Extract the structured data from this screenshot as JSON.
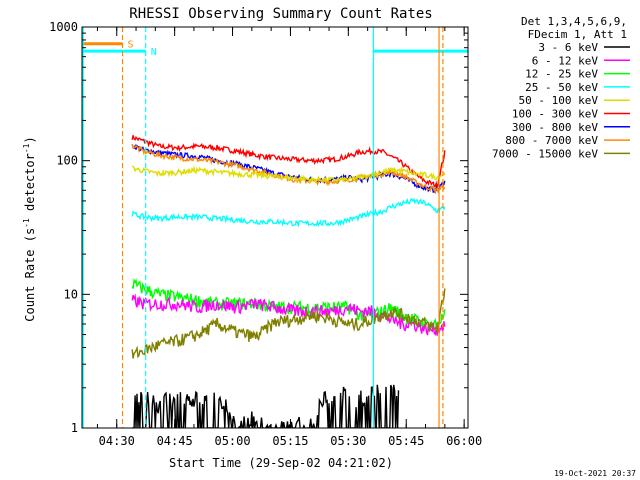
{
  "chart_data": {
    "type": "line",
    "title": "RHESSI Observing Summary Count Rates",
    "xlabel": "Start Time (29-Sep-02 04:21:02)",
    "ylabel_main": "Count Rate (s",
    "ylabel_sup1": "-1",
    "ylabel_mid": " detector",
    "ylabel_sup2": "-1",
    "ylabel_end": ")",
    "yscale": "log",
    "ylim": [
      1,
      1000
    ],
    "xlim_minutes": [
      0,
      100
    ],
    "x_ticks": [
      {
        "label": "04:30",
        "m": 9
      },
      {
        "label": "04:45",
        "m": 24
      },
      {
        "label": "05:00",
        "m": 39
      },
      {
        "label": "05:15",
        "m": 54
      },
      {
        "label": "05:30",
        "m": 69
      },
      {
        "label": "05:45",
        "m": 84
      },
      {
        "label": "06:00",
        "m": 99
      }
    ],
    "y_ticks": [
      {
        "label": "1",
        "v": 1
      },
      {
        "label": "10",
        "v": 10
      },
      {
        "label": "100",
        "v": 100
      },
      {
        "label": "1000",
        "v": 1000
      }
    ],
    "legend_header": [
      "Det 1,3,4,5,6,9,",
      "FDecim 1, Att 1"
    ],
    "legend": [
      {
        "label": "3 - 6 keV",
        "color": "#000000"
      },
      {
        "label": "6 - 12 keV",
        "color": "#ff00ff"
      },
      {
        "label": "12 - 25 keV",
        "color": "#00ff00"
      },
      {
        "label": "25 - 50 keV",
        "color": "#00ffff"
      },
      {
        "label": "50 - 100 keV",
        "color": "#dddd00"
      },
      {
        "label": "100 - 300 keV",
        "color": "#ff0000"
      },
      {
        "label": "300 - 800 keV",
        "color": "#0000ff"
      },
      {
        "label": "800 - 7000 keV",
        "color": "#ff8800"
      },
      {
        "label": "7000 - 15000 keV",
        "color": "#808000"
      }
    ],
    "markers": [
      {
        "label": "S",
        "color": "#ff8800",
        "x_start": 0,
        "x_end": 10.5,
        "y": 750
      },
      {
        "label": "N",
        "color": "#00ffff",
        "x_start": 0,
        "x_end": 16.5,
        "y": 660
      }
    ],
    "series": [
      {
        "color": "#ff0000",
        "x": [
          13,
          16,
          20,
          25,
          30,
          35,
          40,
          45,
          50,
          55,
          60,
          65,
          69,
          72,
          75,
          78,
          80,
          83,
          86,
          89,
          92,
          94
        ],
        "values": [
          150,
          140,
          128,
          125,
          128,
          125,
          118,
          110,
          105,
          102,
          100,
          102,
          108,
          116,
          118,
          116,
          108,
          95,
          80,
          70,
          65,
          115
        ]
      },
      {
        "color": "#0000ff",
        "x": [
          13,
          16,
          20,
          25,
          30,
          35,
          40,
          45,
          50,
          55,
          60,
          65,
          69,
          72,
          75,
          78,
          80,
          83,
          86,
          89,
          92,
          94
        ],
        "values": [
          130,
          120,
          115,
          110,
          108,
          100,
          95,
          88,
          80,
          75,
          72,
          72,
          75,
          72,
          75,
          78,
          80,
          75,
          68,
          62,
          60,
          70
        ]
      },
      {
        "color": "#ff8800",
        "x": [
          13,
          16,
          20,
          25,
          30,
          35,
          40,
          45,
          50,
          55,
          60,
          65,
          69,
          72,
          75,
          78,
          80,
          83,
          86,
          89,
          92,
          94
        ],
        "values": [
          130,
          118,
          110,
          105,
          102,
          98,
          92,
          85,
          78,
          72,
          70,
          70,
          72,
          75,
          78,
          80,
          82,
          78,
          70,
          64,
          60,
          65
        ]
      },
      {
        "color": "#dddd00",
        "x": [
          13,
          16,
          20,
          25,
          30,
          35,
          40,
          45,
          50,
          55,
          60,
          65,
          69,
          72,
          75,
          78,
          80,
          83,
          86,
          89,
          92,
          94
        ],
        "values": [
          88,
          84,
          80,
          82,
          85,
          82,
          80,
          78,
          76,
          74,
          72,
          72,
          72,
          75,
          78,
          82,
          85,
          84,
          80,
          78,
          75,
          80
        ]
      },
      {
        "color": "#00ffff",
        "x": [
          13,
          16,
          20,
          25,
          30,
          35,
          40,
          45,
          50,
          55,
          60,
          65,
          69,
          72,
          75,
          78,
          80,
          83,
          86,
          89,
          92,
          94
        ],
        "values": [
          40,
          38,
          37,
          38,
          38,
          37,
          36,
          35,
          35,
          34,
          34,
          34,
          36,
          38,
          40,
          42,
          45,
          48,
          50,
          48,
          42,
          45
        ]
      },
      {
        "color": "#00ff00",
        "x": [
          13,
          16,
          20,
          25,
          30,
          35,
          40,
          45,
          50,
          55,
          60,
          65,
          69,
          72,
          75,
          78,
          80,
          83,
          86,
          89,
          92,
          94
        ],
        "values": [
          12,
          11,
          10,
          9.5,
          9,
          8.5,
          8.5,
          8.5,
          8,
          8,
          8,
          8,
          8,
          7,
          7,
          7.5,
          8,
          7,
          6.5,
          6,
          6,
          7
        ]
      },
      {
        "color": "#ff00ff",
        "x": [
          13,
          16,
          20,
          25,
          30,
          35,
          40,
          45,
          50,
          55,
          60,
          65,
          69,
          72,
          75,
          78,
          80,
          83,
          86,
          89,
          92,
          94
        ],
        "values": [
          9,
          8.5,
          8.5,
          8.5,
          8,
          8.5,
          8,
          8.5,
          8,
          7.5,
          7.5,
          7.5,
          8,
          7.5,
          7.5,
          7,
          6.5,
          6,
          6,
          5.5,
          5.5,
          6
        ]
      },
      {
        "color": "#808000",
        "x": [
          13,
          16,
          20,
          25,
          30,
          35,
          40,
          45,
          50,
          55,
          60,
          65,
          69,
          72,
          75,
          78,
          80,
          83,
          86,
          89,
          92,
          94
        ],
        "values": [
          3.5,
          3.8,
          4.2,
          4.5,
          5,
          6,
          5.2,
          4.8,
          6.2,
          6.5,
          7,
          6.5,
          6,
          6,
          6.5,
          7,
          7.5,
          7,
          6.5,
          6,
          5.5,
          11
        ]
      },
      {
        "color": "#000000",
        "x": [
          13,
          17,
          20,
          25,
          30,
          36,
          40,
          45,
          50,
          55,
          58,
          60,
          62,
          65,
          68,
          70,
          71,
          72,
          73,
          74,
          75,
          76,
          78,
          80,
          82
        ],
        "values": [
          1.6,
          1.7,
          1.5,
          1.8,
          1.6,
          1.7,
          1.0,
          1.2,
          1.0,
          1.1,
          1.0,
          1.2,
          1.6,
          1.7,
          1.8,
          1.8,
          1.5,
          1.8,
          1.7,
          1.8,
          1.8,
          1.9,
          1.8,
          1.9,
          1.8
        ]
      }
    ],
    "vlines": [
      {
        "m": 10.5,
        "color": "#ff8800",
        "dash": true
      },
      {
        "m": 16.5,
        "color": "#00ffff",
        "dash": true
      },
      {
        "m": 75.5,
        "color": "#00ffff",
        "dash": false
      },
      {
        "m": 92.5,
        "color": "#ff8800",
        "dash": false
      },
      {
        "m": 93.5,
        "color": "#ff8800",
        "dash": true
      }
    ]
  },
  "footer": {
    "timestamp": "19-Oct-2021 20:37"
  }
}
